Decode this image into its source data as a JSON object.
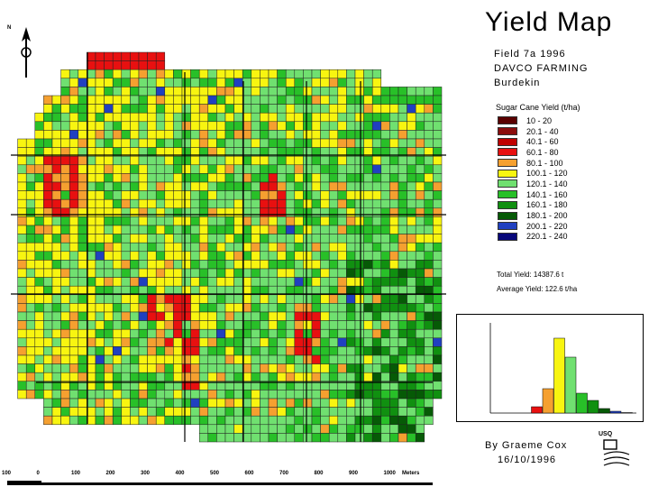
{
  "title": "Yield Map",
  "field": "Field 7a  1996",
  "farm": "DAVCO FARMING",
  "region": "Burdekin",
  "legend": {
    "title": "Sugar Cane Yield (t/ha)",
    "classes": [
      {
        "label": "10 - 20",
        "color": "#5a0000"
      },
      {
        "label": "20.1 - 40",
        "color": "#8b0d0d"
      },
      {
        "label": "40.1 - 60",
        "color": "#c00000"
      },
      {
        "label": "60.1 - 80",
        "color": "#e81010"
      },
      {
        "label": "80.1 - 100",
        "color": "#f5a030"
      },
      {
        "label": "100.1 - 120",
        "color": "#f8f510"
      },
      {
        "label": "120.1 - 140",
        "color": "#70e070"
      },
      {
        "label": "140.1 - 160",
        "color": "#28c028"
      },
      {
        "label": "160.1 - 180",
        "color": "#109010"
      },
      {
        "label": "180.1 - 200",
        "color": "#065a06"
      },
      {
        "label": "200.1 - 220",
        "color": "#2040c0"
      },
      {
        "label": "220.1 - 240",
        "color": "#08087a"
      }
    ]
  },
  "total_yield": "Total Yield: 14387.6 t",
  "average_yield": "Average Yield: 122.6 t/ha",
  "author": "By Graeme Cox",
  "date": "16/10/1996",
  "north_label": "N",
  "scale": {
    "ticks": [
      "100",
      "0",
      "100",
      "200",
      "300",
      "400",
      "500",
      "600",
      "700",
      "800",
      "900",
      "1000"
    ],
    "unit": "Meters"
  },
  "logo_label": "USQ",
  "chart_data": {
    "type": "bar",
    "categories": [
      "10 - 20",
      "20.1 - 40",
      "40.1 - 60",
      "60.1 - 80",
      "80.1 - 100",
      "100.1 - 120",
      "120.1 - 140",
      "140.1 - 160",
      "160.1 - 180",
      "180.1 - 200",
      "200.1 - 220",
      "220.1 - 240"
    ],
    "values": [
      0,
      0,
      0,
      0.07,
      0.27,
      0.83,
      0.62,
      0.22,
      0.14,
      0.05,
      0.02,
      0.005
    ],
    "ylim": [
      0,
      1
    ]
  }
}
